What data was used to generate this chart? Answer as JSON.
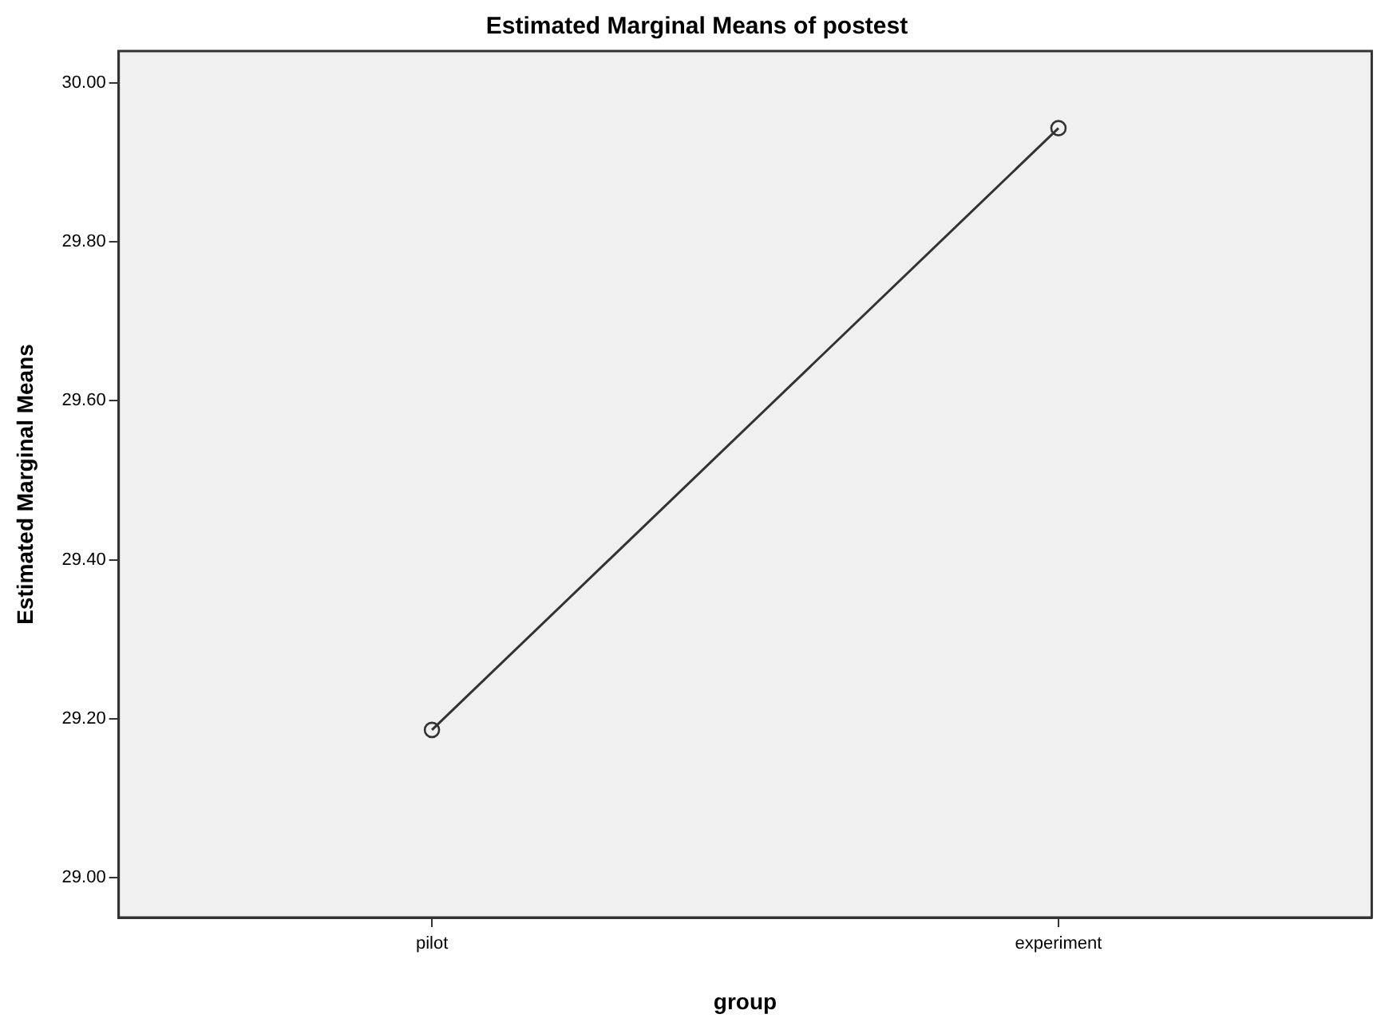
{
  "chart_data": {
    "type": "line",
    "title": "Estimated Marginal Means of postest",
    "xlabel": "group",
    "ylabel": "Estimated Marginal Means",
    "categories": [
      "pilot",
      "experiment"
    ],
    "series": [
      {
        "color": "#333333",
        "values": [
          29.186,
          29.943
        ]
      }
    ],
    "ylim": [
      28.95,
      30.04
    ],
    "yticks": [
      {
        "value": 29,
        "label": "29.00"
      },
      {
        "value": 29.2,
        "label": "29.20"
      },
      {
        "value": 29.4,
        "label": "29.40"
      },
      {
        "value": 29.6,
        "label": "29.60"
      },
      {
        "value": 29.8,
        "label": "29.80"
      },
      {
        "value": 30,
        "label": "30.00"
      }
    ],
    "grid": false,
    "legend": false,
    "marker": "circle",
    "line_style": "solid"
  }
}
